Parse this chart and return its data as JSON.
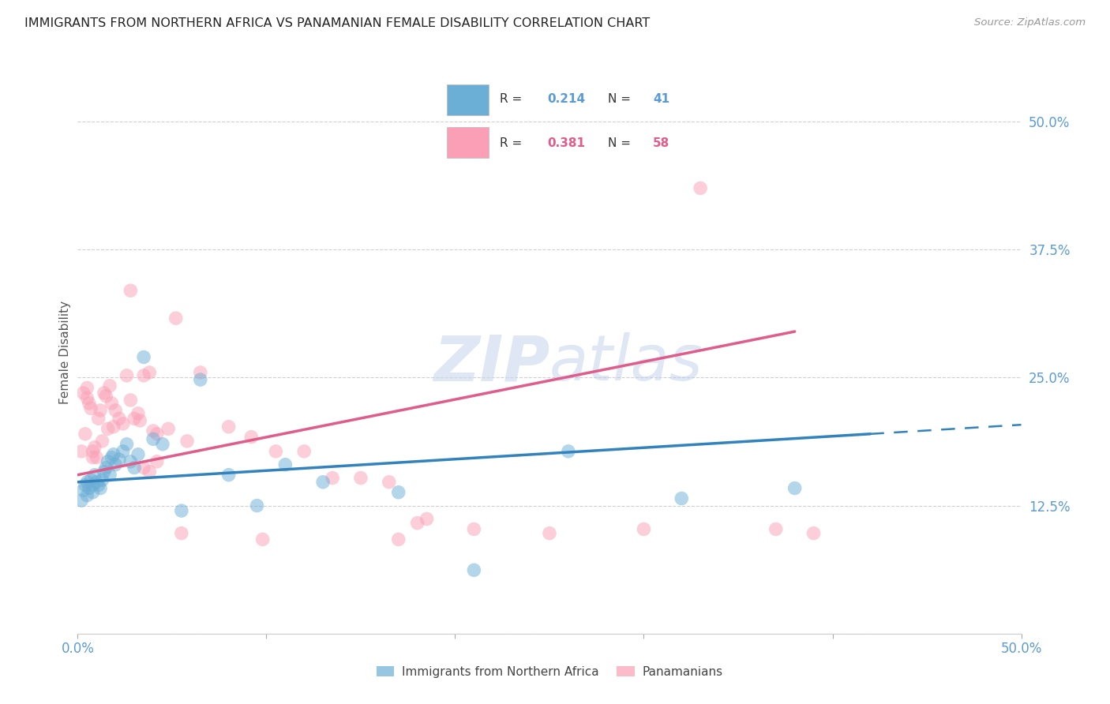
{
  "title": "IMMIGRANTS FROM NORTHERN AFRICA VS PANAMANIAN FEMALE DISABILITY CORRELATION CHART",
  "source": "Source: ZipAtlas.com",
  "ylabel": "Female Disability",
  "ytick_labels": [
    "50.0%",
    "37.5%",
    "25.0%",
    "12.5%"
  ],
  "ytick_values": [
    0.5,
    0.375,
    0.25,
    0.125
  ],
  "xlim": [
    0.0,
    0.5
  ],
  "ylim": [
    0.0,
    0.55
  ],
  "legend_label1": "Immigrants from Northern Africa",
  "legend_label2": "Panamanians",
  "color_blue": "#6baed6",
  "color_pink": "#fa9fb5",
  "color_blue_line": "#3182bd",
  "color_pink_line": "#e05c8a",
  "R_blue": 0.214,
  "N_blue": 41,
  "R_pink": 0.381,
  "N_pink": 58,
  "blue_points_x": [
    0.002,
    0.003,
    0.004,
    0.005,
    0.005,
    0.006,
    0.007,
    0.008,
    0.008,
    0.009,
    0.01,
    0.011,
    0.012,
    0.013,
    0.014,
    0.015,
    0.016,
    0.017,
    0.018,
    0.019,
    0.02,
    0.022,
    0.024,
    0.026,
    0.028,
    0.03,
    0.032,
    0.035,
    0.04,
    0.045,
    0.055,
    0.065,
    0.08,
    0.095,
    0.11,
    0.13,
    0.17,
    0.21,
    0.26,
    0.32,
    0.38
  ],
  "blue_points_y": [
    0.13,
    0.14,
    0.145,
    0.135,
    0.148,
    0.142,
    0.15,
    0.138,
    0.145,
    0.155,
    0.148,
    0.145,
    0.142,
    0.15,
    0.158,
    0.162,
    0.168,
    0.155,
    0.172,
    0.175,
    0.165,
    0.17,
    0.178,
    0.185,
    0.168,
    0.162,
    0.175,
    0.27,
    0.19,
    0.185,
    0.12,
    0.248,
    0.155,
    0.125,
    0.165,
    0.148,
    0.138,
    0.062,
    0.178,
    0.132,
    0.142
  ],
  "pink_points_x": [
    0.002,
    0.003,
    0.004,
    0.005,
    0.005,
    0.006,
    0.007,
    0.008,
    0.008,
    0.009,
    0.01,
    0.011,
    0.012,
    0.013,
    0.014,
    0.015,
    0.016,
    0.017,
    0.018,
    0.019,
    0.02,
    0.022,
    0.024,
    0.026,
    0.028,
    0.03,
    0.032,
    0.033,
    0.035,
    0.038,
    0.04,
    0.042,
    0.048,
    0.052,
    0.058,
    0.065,
    0.08,
    0.092,
    0.105,
    0.12,
    0.135,
    0.15,
    0.165,
    0.185,
    0.21,
    0.25,
    0.3,
    0.33,
    0.37,
    0.39,
    0.038,
    0.042,
    0.055,
    0.028,
    0.035,
    0.18,
    0.17,
    0.098
  ],
  "pink_points_y": [
    0.178,
    0.235,
    0.195,
    0.24,
    0.23,
    0.225,
    0.22,
    0.178,
    0.172,
    0.182,
    0.172,
    0.21,
    0.218,
    0.188,
    0.235,
    0.232,
    0.2,
    0.242,
    0.225,
    0.202,
    0.218,
    0.21,
    0.205,
    0.252,
    0.228,
    0.21,
    0.215,
    0.208,
    0.252,
    0.255,
    0.198,
    0.195,
    0.2,
    0.308,
    0.188,
    0.255,
    0.202,
    0.192,
    0.178,
    0.178,
    0.152,
    0.152,
    0.148,
    0.112,
    0.102,
    0.098,
    0.102,
    0.435,
    0.102,
    0.098,
    0.158,
    0.168,
    0.098,
    0.335,
    0.162,
    0.108,
    0.092,
    0.092
  ],
  "background_color": "#ffffff",
  "grid_color": "#d0d0d0"
}
